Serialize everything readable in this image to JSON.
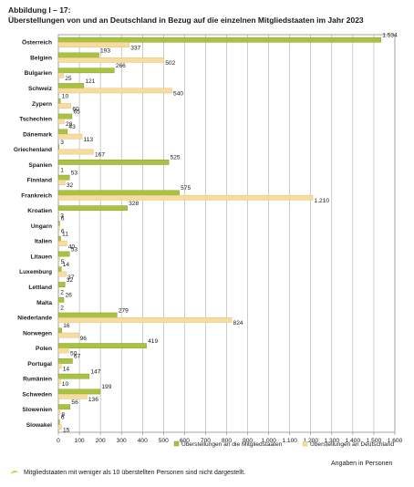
{
  "figure": {
    "label": "Abbildung I – 17:",
    "title": "Überstellungen von und an Deutschland in Bezug auf die einzelnen Mitgliedstaaten im Jahr 2023",
    "unit_note": "Angaben in Personen",
    "footnote": "Mitgliedstaaten mit weniger als 10 überstellten Personen sind nicht dargestellt."
  },
  "colors": {
    "series1": "#a9c23f",
    "series2": "#f7dca0",
    "series1_stroke": "#7d9226",
    "series2_stroke": "#d9b868",
    "grid": "#9a9a9a"
  },
  "chart_data": {
    "type": "bar",
    "orientation": "horizontal",
    "title": "Überstellungen von und an Deutschland in Bezug auf die einzelnen Mitgliedstaaten im Jahr 2023",
    "xlabel": "Angaben in Personen",
    "xlim": [
      0,
      1600
    ],
    "xticks": [
      0,
      100,
      200,
      300,
      400,
      500,
      600,
      700,
      800,
      900,
      1000,
      1100,
      1200,
      1300,
      1400,
      1500,
      1600
    ],
    "grid": true,
    "legend_position": "bottom-right",
    "categories": [
      "Österreich",
      "Belgien",
      "Bulgarien",
      "Schweiz",
      "Zypern",
      "Tschechien",
      "Dänemark",
      "Griechenland",
      "Spanien",
      "Finnland",
      "Frankreich",
      "Kroatien",
      "Ungarn",
      "Italien",
      "Litauen",
      "Luxemburg",
      "Lettland",
      "Malta",
      "Niederlande",
      "Norwegen",
      "Polen",
      "Portugal",
      "Rumänien",
      "Schweden",
      "Slowenien",
      "Slowakei"
    ],
    "series": [
      {
        "name": "Überstellungen an die Mitgliedstaaten",
        "values": [
          1534,
          193,
          266,
          121,
          10,
          65,
          43,
          3,
          525,
          53,
          575,
          328,
          6,
          11,
          53,
          14,
          32,
          26,
          279,
          16,
          419,
          67,
          147,
          199,
          56,
          6
        ]
      },
      {
        "name": "Überstellungen an Deutschland",
        "values": [
          337,
          502,
          25,
          540,
          60,
          28,
          113,
          167,
          1,
          32,
          1210,
          3,
          6,
          40,
          5,
          37,
          2,
          2,
          824,
          96,
          50,
          14,
          10,
          136,
          8,
          15
        ]
      }
    ],
    "value_labels": [
      [
        "1.534",
        "193",
        "266",
        "121",
        "10",
        "65",
        "43",
        "3",
        "525",
        "53",
        "575",
        "328",
        "6",
        "11",
        "53",
        "14",
        "32",
        "26",
        "279",
        "16",
        "419",
        "67",
        "147",
        "199",
        "56",
        "6"
      ],
      [
        "337",
        "502",
        "25",
        "540",
        "60",
        "28",
        "113",
        "167",
        "1",
        "32",
        "1.210",
        "3",
        "6",
        "40",
        "5",
        "37",
        "2",
        "2",
        "824",
        "96",
        "50",
        "14",
        "10",
        "136",
        "8",
        "15"
      ]
    ]
  }
}
